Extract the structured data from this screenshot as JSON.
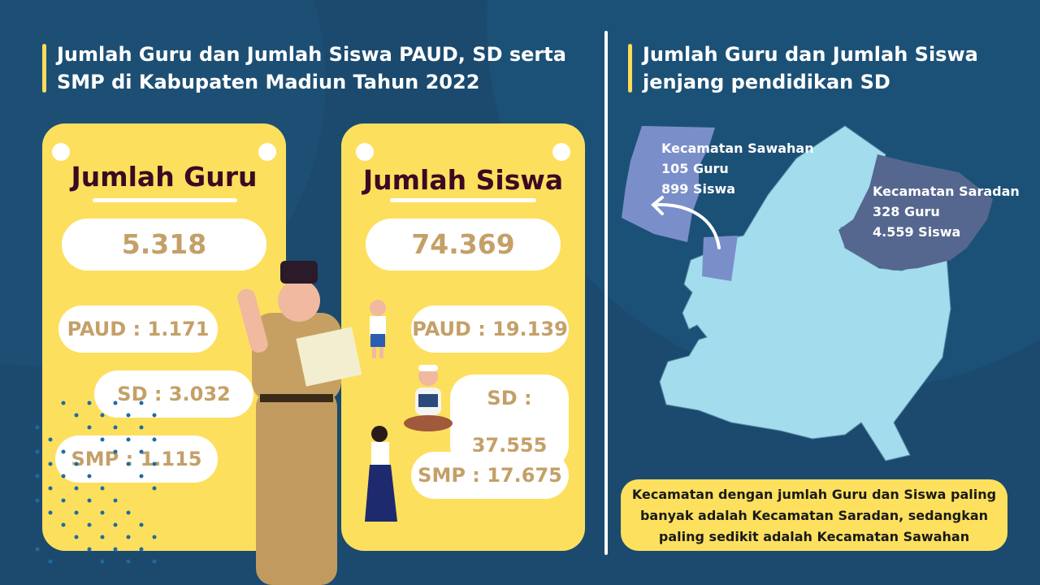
{
  "left": {
    "title": "Jumlah Guru dan Jumlah Siswa PAUD, SD serta SMP di Kabupaten Madiun Tahun 2022",
    "guru": {
      "heading": "Jumlah Guru",
      "total": "5.318",
      "paud": "PAUD : 1.171",
      "sd": "SD : 3.032",
      "smp": "SMP : 1.115"
    },
    "siswa": {
      "heading": "Jumlah Siswa",
      "total": "74.369",
      "paud": "PAUD : 19.139",
      "sd": "SD : 37.555",
      "smp": "SMP : 17.675"
    }
  },
  "right": {
    "title": "Jumlah Guru dan Jumlah Siswa jenjang pendidikan SD",
    "sawahan": {
      "name": "Kecamatan Sawahan",
      "guru": "105 Guru",
      "siswa": "899 Siswa"
    },
    "saradan": {
      "name": "Kecamatan Saradan",
      "guru": "328 Guru",
      "siswa": "4.559 Siswa"
    },
    "note": "Kecamatan dengan jumlah Guru dan Siswa paling banyak adalah Kecamatan Saradan, sedangkan paling sedikit adalah Kecamatan Sawahan"
  },
  "colors": {
    "background": "#1b4a6e",
    "card": "#fddf5e",
    "map": "#a3dcec",
    "sawahan": "#7a8fca",
    "saradan": "#55678f"
  }
}
